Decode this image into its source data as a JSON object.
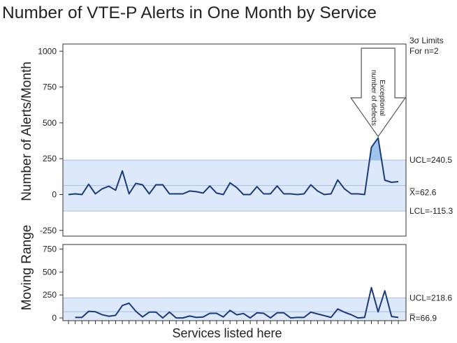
{
  "chart_data": {
    "title": "Number of VTE-P Alerts in One Month by Service",
    "xlabel": "Services listed here",
    "limits_note": [
      "3σ Limits",
      "For n=2"
    ],
    "colors": {
      "line": "#1a3a7a",
      "band": "#dde9fb",
      "limit_line": "#a7bfdc",
      "exceed_fill": "#9fc4ee",
      "arrow_fill": "#ffffff",
      "arrow_stroke": "#555555"
    },
    "panels": [
      {
        "id": "individuals",
        "type": "line",
        "ylabel": "Number of Alerts/Month",
        "ylim": [
          -290,
          1050
        ],
        "yticks": [
          1000,
          750,
          500,
          250,
          0,
          -250
        ],
        "ytick_labels": [
          "1000",
          "750",
          "500",
          "250",
          "0",
          "-250"
        ],
        "center": 62.6,
        "ucl": 240.5,
        "lcl": -115.3,
        "center_label": "X̅=62.6",
        "ucl_label": "UCL=240.5",
        "lcl_label": "LCL=-115.3",
        "annotation": [
          "Exceptional",
          "number of defects"
        ],
        "values": [
          0,
          5,
          0,
          72,
          5,
          40,
          58,
          30,
          165,
          5,
          78,
          68,
          5,
          68,
          68,
          5,
          5,
          5,
          25,
          20,
          10,
          60,
          10,
          0,
          82,
          48,
          0,
          0,
          55,
          5,
          5,
          60,
          5,
          5,
          0,
          5,
          68,
          25,
          0,
          5,
          102,
          40,
          5,
          5,
          0,
          330,
          395,
          100,
          85,
          90
        ]
      },
      {
        "id": "moving-range",
        "type": "line",
        "ylabel": "Moving Range",
        "ylim": [
          -30,
          800
        ],
        "yticks": [
          750,
          500,
          250,
          0
        ],
        "ytick_labels": [
          "750",
          "500",
          "250",
          "0"
        ],
        "center": 66.9,
        "ucl": 218.6,
        "center_label": "R̅=66.9",
        "ucl_label": "UCL=218.6",
        "values": [
          null,
          5,
          5,
          72,
          67,
          35,
          18,
          28,
          135,
          160,
          73,
          10,
          63,
          63,
          0,
          63,
          0,
          0,
          20,
          5,
          10,
          50,
          50,
          10,
          82,
          34,
          48,
          0,
          55,
          50,
          0,
          55,
          55,
          0,
          5,
          5,
          63,
          43,
          25,
          5,
          97,
          62,
          35,
          0,
          5,
          330,
          65,
          295,
          15,
          5
        ]
      }
    ]
  }
}
